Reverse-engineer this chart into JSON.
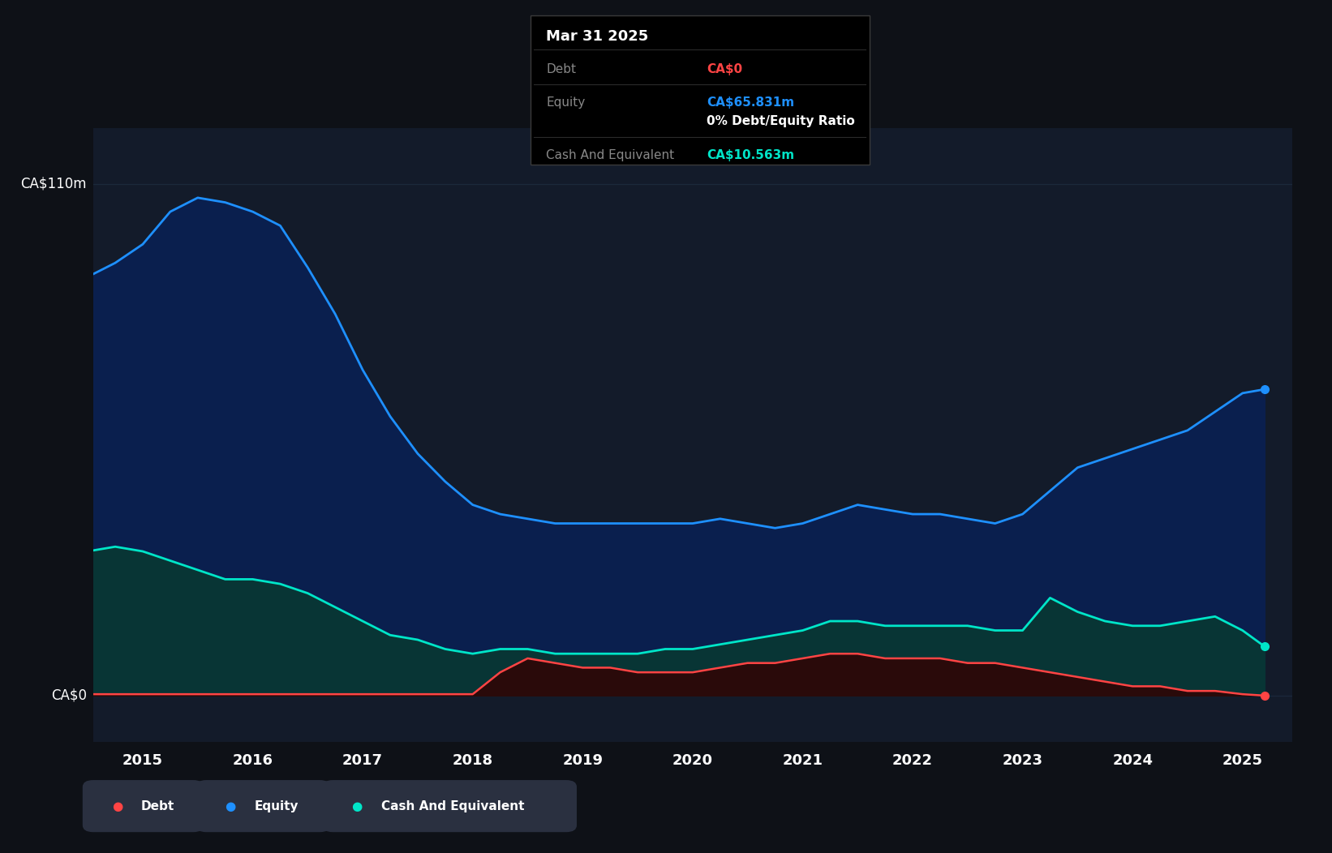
{
  "background_color": "#0e1117",
  "chart_area_color": "#131b2a",
  "grid_color": "#1e2d40",
  "title_text": "Mar 31 2025",
  "tooltip_debt_label": "Debt",
  "tooltip_debt_value": "CA$0",
  "tooltip_equity_label": "Equity",
  "tooltip_equity_value": "CA$65.831m",
  "tooltip_ratio_text": "0% Debt/Equity Ratio",
  "tooltip_cash_label": "Cash And Equivalent",
  "tooltip_cash_value": "CA$10.563m",
  "y_label_top": "CA$110m",
  "y_label_zero": "CA$0",
  "years": [
    2014.5,
    2014.75,
    2015.0,
    2015.25,
    2015.5,
    2015.75,
    2016.0,
    2016.25,
    2016.5,
    2016.75,
    2017.0,
    2017.25,
    2017.5,
    2017.75,
    2018.0,
    2018.25,
    2018.5,
    2018.75,
    2019.0,
    2019.25,
    2019.5,
    2019.75,
    2020.0,
    2020.25,
    2020.5,
    2020.75,
    2021.0,
    2021.25,
    2021.5,
    2021.75,
    2022.0,
    2022.25,
    2022.5,
    2022.75,
    2023.0,
    2023.25,
    2023.5,
    2023.75,
    2024.0,
    2024.25,
    2024.5,
    2024.75,
    2025.0,
    2025.2
  ],
  "equity": [
    90,
    93,
    97,
    104,
    107,
    106,
    104,
    101,
    92,
    82,
    70,
    60,
    52,
    46,
    41,
    39,
    38,
    37,
    37,
    37,
    37,
    37,
    37,
    38,
    37,
    36,
    37,
    39,
    41,
    40,
    39,
    39,
    38,
    37,
    39,
    44,
    49,
    51,
    53,
    55,
    57,
    61,
    65,
    65.831
  ],
  "cash": [
    31,
    32,
    31,
    29,
    27,
    25,
    25,
    24,
    22,
    19,
    16,
    13,
    12,
    10,
    9,
    10,
    10,
    9,
    9,
    9,
    9,
    10,
    10,
    11,
    12,
    13,
    14,
    16,
    16,
    15,
    15,
    15,
    15,
    14,
    14,
    21,
    18,
    16,
    15,
    15,
    16,
    17,
    14,
    10.563
  ],
  "debt": [
    0.3,
    0.3,
    0.3,
    0.3,
    0.3,
    0.3,
    0.3,
    0.3,
    0.3,
    0.3,
    0.3,
    0.3,
    0.3,
    0.3,
    0.3,
    5,
    8,
    7,
    6,
    6,
    5,
    5,
    5,
    6,
    7,
    7,
    8,
    9,
    9,
    8,
    8,
    8,
    7,
    7,
    6,
    5,
    4,
    3,
    2,
    2,
    1,
    1,
    0.3,
    0
  ],
  "equity_color": "#1e90ff",
  "equity_fill": "#0a1f4e",
  "cash_color": "#00e5c8",
  "cash_fill": "#083535",
  "debt_color": "#ff4444",
  "debt_fill": "#2a0a0a",
  "legend_bg": "#2a3040",
  "tooltip_bg": "#000000",
  "x_tick_labels": [
    "2015",
    "2016",
    "2017",
    "2018",
    "2019",
    "2020",
    "2021",
    "2022",
    "2023",
    "2024",
    "2025"
  ],
  "x_tick_positions": [
    2015,
    2016,
    2017,
    2018,
    2019,
    2020,
    2021,
    2022,
    2023,
    2024,
    2025
  ],
  "ylim_max": 122,
  "ylim_min": -10,
  "xlim_min": 2014.55,
  "xlim_max": 2025.45
}
